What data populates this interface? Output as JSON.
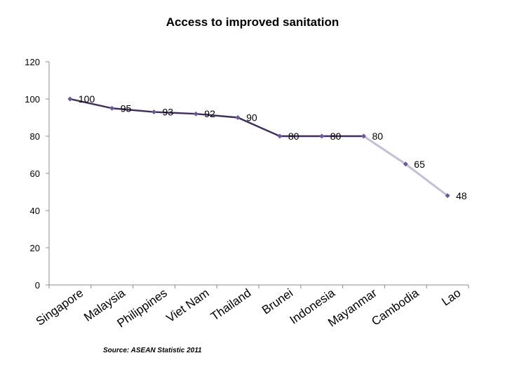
{
  "chart_data": {
    "type": "line",
    "title": "Access to improved sanitation",
    "categories": [
      "Singapore",
      "Malaysia",
      "Philippines",
      "Viet Nam",
      "Thailand",
      "Brunei",
      "Indonesia",
      "Mayanmar",
      "Cambodia",
      "Lao"
    ],
    "values": [
      100,
      95,
      93,
      92,
      90,
      80,
      80,
      80,
      65,
      48
    ],
    "yticks": [
      0,
      20,
      40,
      60,
      80,
      100,
      120
    ],
    "ylim": [
      0,
      120
    ],
    "xlabel": "",
    "ylabel": "",
    "grid": false,
    "legend": "none",
    "source": "Source: ASEAN Statistic  2011",
    "colors": {
      "line": "#3d2e5a",
      "line_light": "#c4bfd6",
      "marker": "#6b5898",
      "axis": "#8c8c8c"
    }
  }
}
